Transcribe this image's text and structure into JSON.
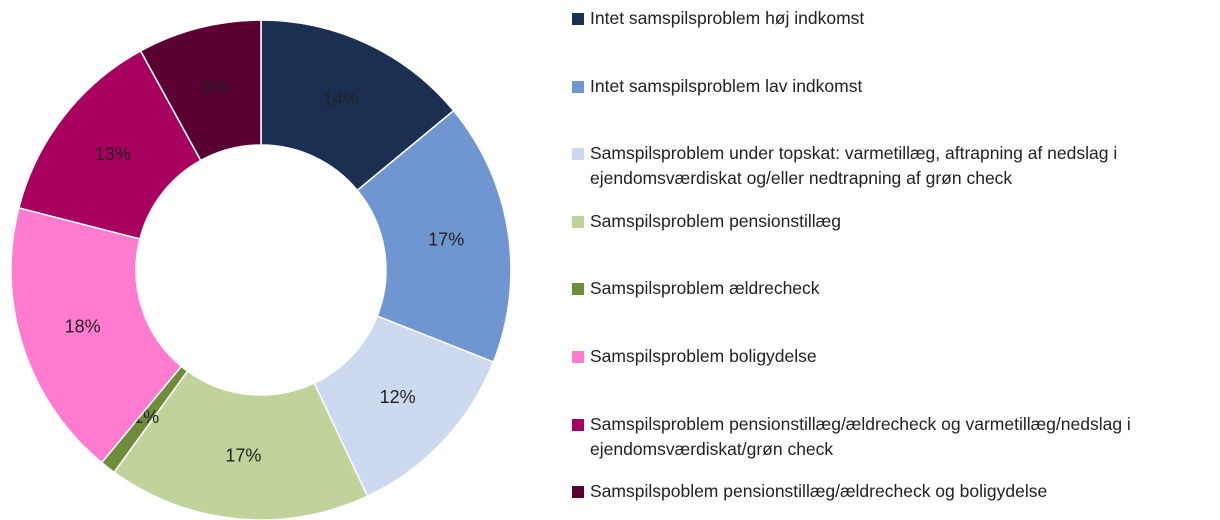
{
  "chart_data": {
    "type": "donut",
    "categories": [
      "Intet samspilsproblem høj indkomst",
      "Intet samspilsproblem lav indkomst",
      "Samspilsproblem under topskat: varmetillæg, aftrapning af nedslag i ejendomsværdiskat og/eller nedtrapning af grøn check",
      "Samspilsproblem pensionstillæg",
      "Samspilsproblem ældrecheck",
      "Samspilsproblem boligydelse",
      "Samspilsproblem pensionstillæg/ældrecheck og varmetillæg/nedslag i ejendomsværdiskat/grøn check",
      "Samspilspoblem pensionstillæg/ældrecheck og boligydelse"
    ],
    "values": [
      14,
      17,
      12,
      17,
      1,
      18,
      13,
      8
    ],
    "value_labels": [
      "14%",
      "17%",
      "12%",
      "17%",
      "1%",
      "18%",
      "13%",
      "8%"
    ],
    "colors": [
      "#1b2f52",
      "#7096d2",
      "#cdd9ef",
      "#c0d39a",
      "#6e8c3a",
      "#ff7bd0",
      "#a8005f",
      "#5a0033"
    ],
    "legend": "right"
  }
}
